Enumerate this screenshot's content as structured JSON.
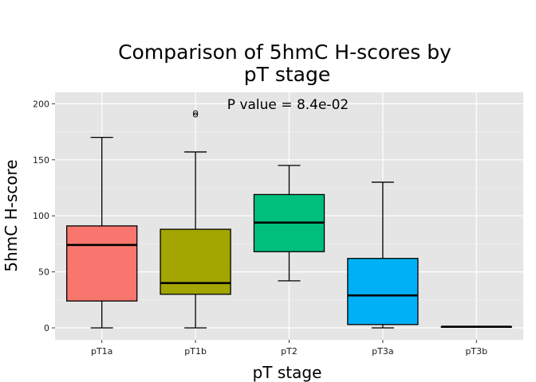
{
  "chart_data": {
    "type": "boxplot",
    "title_line1": "Comparison of 5hmC H-scores by",
    "title_line2": "pT stage",
    "xlabel": "pT stage",
    "ylabel": "5hmC H-score",
    "ylim": [
      -10,
      210
    ],
    "yticks": [
      0,
      50,
      100,
      150,
      200
    ],
    "annotation": "P value = 8.4e-02",
    "grid": true,
    "categories": [
      "pT1a",
      "pT1b",
      "pT2",
      "pT3a",
      "pT3b"
    ],
    "boxes": [
      {
        "category": "pT1a",
        "whisker_low": 0,
        "q1": 24,
        "median": 74,
        "q3": 91,
        "whisker_high": 170,
        "outliers": [],
        "color": "#F8766D"
      },
      {
        "category": "pT1b",
        "whisker_low": 0,
        "q1": 30,
        "median": 40,
        "q3": 88,
        "whisker_high": 157,
        "outliers": [
          190,
          192
        ],
        "color": "#A3A500"
      },
      {
        "category": "pT2",
        "whisker_low": 42,
        "q1": 68,
        "median": 94,
        "q3": 119,
        "whisker_high": 145,
        "outliers": [],
        "color": "#00BF7D"
      },
      {
        "category": "pT3a",
        "whisker_low": 0,
        "q1": 3,
        "median": 29,
        "q3": 62,
        "whisker_high": 130,
        "outliers": [],
        "color": "#00B0F6"
      },
      {
        "category": "pT3b",
        "whisker_low": 1,
        "q1": 1,
        "median": 1,
        "q3": 1,
        "whisker_high": 1,
        "outliers": [],
        "color": "#E76BF3"
      }
    ]
  }
}
